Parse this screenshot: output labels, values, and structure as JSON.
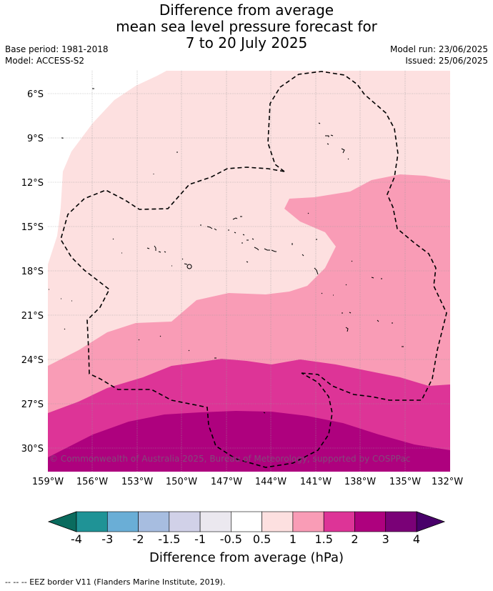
{
  "title": {
    "line1": "Difference from average",
    "line2": "mean sea level pressure forecast for",
    "line3": "7 to 20 July 2025"
  },
  "meta": {
    "base_period": "Base period: 1981-2018",
    "model": "Model: ACCESS-S2",
    "model_run": "Model run: 23/06/2025",
    "issued": "Issued: 25/06/2025"
  },
  "map": {
    "lat_labels": [
      "6°S",
      "9°S",
      "12°S",
      "15°S",
      "18°S",
      "21°S",
      "24°S",
      "27°S",
      "30°S"
    ],
    "lon_labels": [
      "159°W",
      "156°W",
      "153°W",
      "150°W",
      "147°W",
      "144°W",
      "141°W",
      "138°W",
      "135°W",
      "132°W"
    ],
    "copyright": "© Commonwealth of Australia 2025, Bureau of Meteorology, supported by COSPPac"
  },
  "colorbar": {
    "title": "Difference from average (hPa)",
    "ticks": [
      "-4",
      "-3",
      "-2",
      "-1.5",
      "-1",
      "-0.5",
      "0.5",
      "1",
      "1.5",
      "2",
      "3",
      "4"
    ],
    "colors": {
      "below_min": "#0a6b5e",
      "-4_-3": "#1f9396",
      "-3_-2": "#6aaed6",
      "-2_-1.5": "#a7bde0",
      "-1.5_-1": "#d1d1e8",
      "-1_-0.5": "#ebe8ef",
      "-0.5_0.5": "#ffffff",
      "0.5_1": "#fde0e0",
      "1_1.5": "#f99cb6",
      "1.5_2": "#dd3497",
      "2_3": "#ae017e",
      "3_4": "#7a0177",
      "above_max": "#49006a"
    }
  },
  "footer": "--  --  -- EEZ border V11 (Flanders Marine Institute, 2019)."
}
